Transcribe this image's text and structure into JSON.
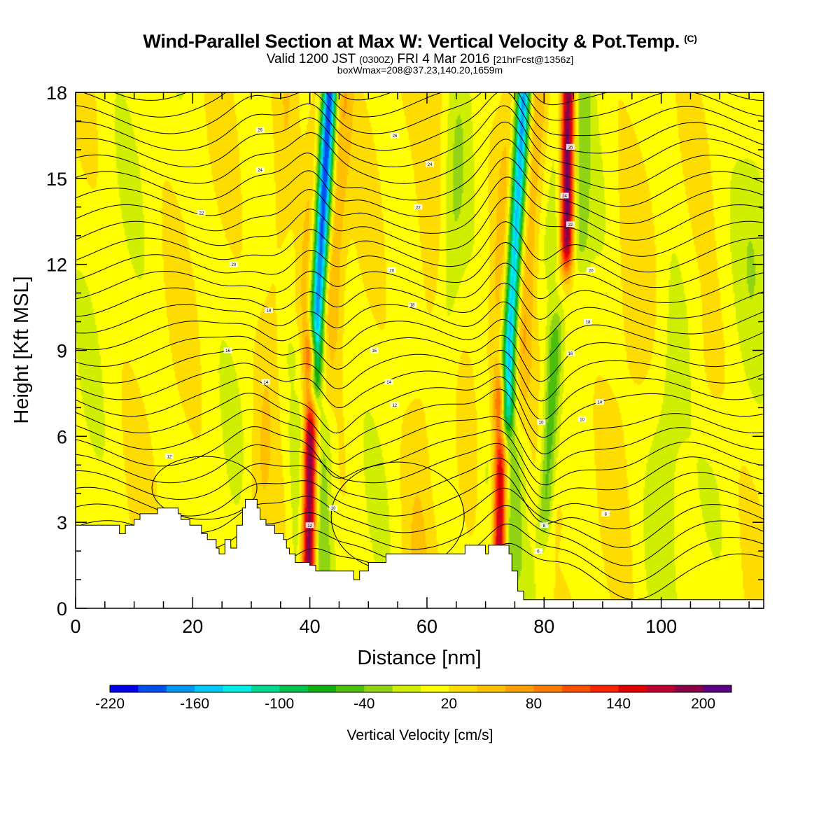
{
  "header": {
    "title": "Wind-Parallel Section at Max W: Vertical Velocity & Pot.Temp.",
    "title_mark": "(C)",
    "valid_prefix": "Valid 1200 JST",
    "valid_utc": "(0300Z)",
    "valid_date": "FRI 4 Mar 2016",
    "forecast": "[21hrFcst@1356z]",
    "boxline": "boxWmax=208@37.23,140.20,1659m"
  },
  "chart_data": {
    "type": "contour",
    "xlabel": "Distance [nm]",
    "ylabel": "Height [Kft MSL]",
    "xlim": [
      0,
      117.5
    ],
    "ylim": [
      0,
      18
    ],
    "x_ticks": [
      0,
      20,
      40,
      60,
      80,
      100
    ],
    "y_ticks": [
      0,
      3,
      6,
      9,
      12,
      15,
      18
    ],
    "colorbar": {
      "title": "Vertical Velocity [cm/s]",
      "levels": [
        -220,
        -200,
        -180,
        -160,
        -140,
        -120,
        -100,
        -80,
        -60,
        -40,
        -20,
        0,
        20,
        40,
        60,
        80,
        100,
        120,
        140,
        160,
        180,
        200,
        220
      ],
      "tick_labels": [
        "-220",
        "-160",
        "-100",
        "-40",
        "20",
        "80",
        "140",
        "200"
      ],
      "colors": [
        "#0000e8",
        "#0050f0",
        "#0096f0",
        "#00c8f8",
        "#00f0e8",
        "#00d890",
        "#00c050",
        "#10ae10",
        "#4cbe0c",
        "#90d414",
        "#d0ee00",
        "#ffff00",
        "#ffdc00",
        "#ffc000",
        "#ffa000",
        "#ff7c00",
        "#ff5000",
        "#f82400",
        "#e00000",
        "#be0030",
        "#8c0046",
        "#5a0082"
      ]
    },
    "features": [
      {
        "type": "updraft",
        "x": 40,
        "z_min": 1.5,
        "z_max": 8.5,
        "w_max": 208
      },
      {
        "type": "downdraft",
        "x": 42,
        "z_min": 8,
        "z_max": 18,
        "w_min": -220
      },
      {
        "type": "updraft",
        "x": 72.5,
        "z_min": 2,
        "z_max": 7,
        "w_max": 170
      },
      {
        "type": "downdraft",
        "x": 75,
        "z_min": 7,
        "z_max": 18,
        "w_min": -190
      },
      {
        "type": "updraft",
        "x": 84,
        "z_min": 13,
        "z_max": 18,
        "w_max": 200
      },
      {
        "type": "downdraft",
        "x": 81,
        "z_min": 3.5,
        "z_max": 9,
        "w_min": -60
      }
    ],
    "isentrope_labels": [
      {
        "x": 31.5,
        "z": 16.7,
        "text": "26"
      },
      {
        "x": 31.5,
        "z": 15.3,
        "text": "24"
      },
      {
        "x": 54.5,
        "z": 16.5,
        "text": "26"
      },
      {
        "x": 60.5,
        "z": 15.5,
        "text": "24"
      },
      {
        "x": 84.5,
        "z": 16.1,
        "text": "26"
      },
      {
        "x": 83.5,
        "z": 14.4,
        "text": "24"
      },
      {
        "x": 84.5,
        "z": 13.4,
        "text": "22"
      },
      {
        "x": 21.5,
        "z": 13.8,
        "text": "22"
      },
      {
        "x": 58.5,
        "z": 14.0,
        "text": "22"
      },
      {
        "x": 27,
        "z": 12.0,
        "text": "20"
      },
      {
        "x": 54,
        "z": 11.8,
        "text": "20"
      },
      {
        "x": 88,
        "z": 11.8,
        "text": "20"
      },
      {
        "x": 33,
        "z": 10.4,
        "text": "18"
      },
      {
        "x": 57.5,
        "z": 10.6,
        "text": "18"
      },
      {
        "x": 87.5,
        "z": 10.0,
        "text": "18"
      },
      {
        "x": 26,
        "z": 9.0,
        "text": "16"
      },
      {
        "x": 51,
        "z": 9.0,
        "text": "16"
      },
      {
        "x": 84.5,
        "z": 8.9,
        "text": "16"
      },
      {
        "x": 32.5,
        "z": 7.9,
        "text": "14"
      },
      {
        "x": 53.5,
        "z": 7.9,
        "text": "14"
      },
      {
        "x": 89.5,
        "z": 7.2,
        "text": "14"
      },
      {
        "x": 54.5,
        "z": 7.1,
        "text": "12"
      },
      {
        "x": 79.5,
        "z": 6.5,
        "text": "10"
      },
      {
        "x": 86.5,
        "z": 6.6,
        "text": "10"
      },
      {
        "x": 16,
        "z": 5.3,
        "text": "12"
      },
      {
        "x": 44,
        "z": 3.5,
        "text": "10"
      },
      {
        "x": 67,
        "z": 2.0,
        "text": "10"
      },
      {
        "x": 40,
        "z": 2.9,
        "text": "12"
      },
      {
        "x": 80,
        "z": 2.9,
        "text": "8"
      },
      {
        "x": 90.5,
        "z": 3.3,
        "text": "8"
      },
      {
        "x": 79,
        "z": 2.0,
        "text": "6"
      }
    ],
    "terrain": [
      [
        0,
        2.9
      ],
      [
        7.5,
        2.9
      ],
      [
        7.5,
        2.6
      ],
      [
        8.5,
        2.6
      ],
      [
        8.5,
        2.9
      ],
      [
        10,
        2.9
      ],
      [
        10,
        3.1
      ],
      [
        11,
        3.1
      ],
      [
        11,
        3.3
      ],
      [
        14,
        3.3
      ],
      [
        14,
        3.5
      ],
      [
        17.5,
        3.5
      ],
      [
        17.5,
        3.3
      ],
      [
        18,
        3.3
      ],
      [
        18,
        3.1
      ],
      [
        19.5,
        3.1
      ],
      [
        19.5,
        2.9
      ],
      [
        21.5,
        2.9
      ],
      [
        21.5,
        2.6
      ],
      [
        22.5,
        2.6
      ],
      [
        22.5,
        2.4
      ],
      [
        24,
        2.4
      ],
      [
        24,
        2.1
      ],
      [
        24.5,
        2.1
      ],
      [
        24.5,
        1.9
      ],
      [
        25.5,
        1.9
      ],
      [
        25.5,
        2.4
      ],
      [
        26.5,
        2.4
      ],
      [
        26.5,
        2.1
      ],
      [
        27.5,
        2.1
      ],
      [
        27.5,
        2.9
      ],
      [
        28.5,
        2.9
      ],
      [
        28.5,
        3.5
      ],
      [
        29,
        3.5
      ],
      [
        29,
        3.8
      ],
      [
        31,
        3.8
      ],
      [
        31,
        3.5
      ],
      [
        31.5,
        3.5
      ],
      [
        31.5,
        3.1
      ],
      [
        32.5,
        3.1
      ],
      [
        32.5,
        2.9
      ],
      [
        34,
        2.9
      ],
      [
        34,
        2.6
      ],
      [
        35.5,
        2.6
      ],
      [
        35.5,
        2.4
      ],
      [
        36,
        2.4
      ],
      [
        36,
        2.1
      ],
      [
        36.5,
        2.1
      ],
      [
        36.5,
        1.9
      ],
      [
        37.5,
        1.9
      ],
      [
        37.5,
        1.6
      ],
      [
        40,
        1.6
      ],
      [
        40,
        1.5
      ],
      [
        41,
        1.5
      ],
      [
        41,
        1.3
      ],
      [
        47.5,
        1.3
      ],
      [
        47.5,
        1.0
      ],
      [
        48.5,
        1.0
      ],
      [
        48.5,
        1.3
      ],
      [
        50,
        1.3
      ],
      [
        50,
        1.6
      ],
      [
        53,
        1.6
      ],
      [
        53,
        1.9
      ],
      [
        66.5,
        1.9
      ],
      [
        66.5,
        2.2
      ],
      [
        70,
        2.2
      ],
      [
        70,
        1.9
      ],
      [
        70.5,
        1.9
      ],
      [
        70.5,
        2.2
      ],
      [
        74,
        2.2
      ],
      [
        74,
        1.9
      ],
      [
        74.5,
        1.9
      ],
      [
        74.5,
        1.3
      ],
      [
        75.5,
        1.3
      ],
      [
        75.5,
        0.6
      ],
      [
        76.5,
        0.6
      ],
      [
        76.5,
        0.3
      ],
      [
        117.5,
        0.3
      ],
      [
        117.5,
        0
      ],
      [
        0,
        0
      ]
    ]
  }
}
